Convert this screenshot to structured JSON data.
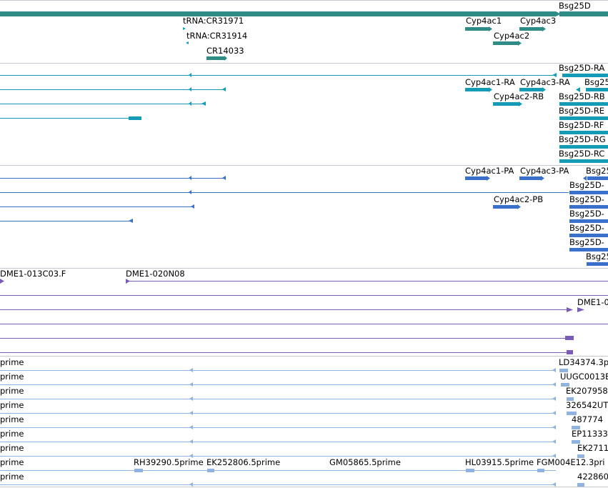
{
  "colors": {
    "gene": "#2e8b86",
    "mrna": "#159bb6",
    "cds": "#3a6fcc",
    "clone": "#7a5bb5",
    "est": "#8fb3de",
    "separator": "#c4c8cc"
  },
  "tracks": {
    "genes": {
      "labels": [
        "Bsg25D",
        "tRNA:CR31971",
        "Cyp4ac1",
        "Cyp4ac3",
        "tRNA:CR31914",
        "Cyp4ac2",
        "CR14033"
      ]
    },
    "transcripts": {
      "labels": [
        "Bsg25D-RA",
        "Cyp4ac1-RA",
        "Cyp4ac3-RA",
        "Bsg25",
        "Cyp4ac2-RB",
        "Bsg25D-RB",
        "Bsg25D-RE",
        "Bsg25D-RF",
        "Bsg25D-RG",
        "Bsg25D-RC"
      ]
    },
    "proteins": {
      "labels": [
        "Cyp4ac1-PA",
        "Cyp4ac3-PA",
        "Bsg25",
        "Bsg25D-",
        "Cyp4ac2-PB",
        "Bsg25D-",
        "Bsg25D-",
        "Bsg25D-",
        "Bsg25D-",
        "Bsg25"
      ]
    },
    "clones": {
      "labels": [
        "DME1-013C03.F",
        "DME1-020N08",
        "DME1-0"
      ]
    },
    "ests": {
      "left_labels": [
        "prime",
        "prime",
        "prime",
        "prime",
        "prime",
        "prime",
        "prime",
        "prime",
        "prime"
      ],
      "right_labels": [
        "LD34374.3p",
        "UUGC0013E",
        "EK207958",
        "326542UT",
        "487774",
        "EP11333",
        "EK2711",
        "FGM004E12.3pri",
        "422860"
      ],
      "row8_labels": [
        "RH39290.5prime",
        "EK252806.5prime",
        "GM05865.5prime",
        "HL03915.5prime"
      ]
    }
  }
}
